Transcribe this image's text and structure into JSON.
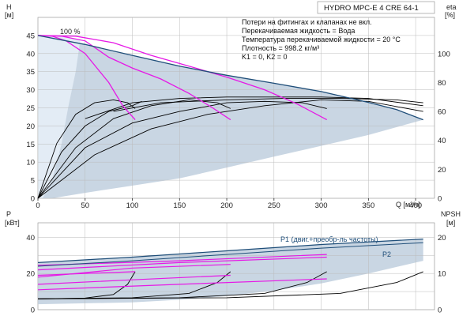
{
  "title": "HYDRO MPC-E 4 CRE 64-1",
  "notes": [
    "Потери на фитингах и клапанах не вкл.",
    "Перекачиваемая жидкость = Вода",
    "Температура перекачиваемой жидкости = 20 °C",
    "Плотность = 998.2 кг/м³",
    "K1 = 0, K2 = 0"
  ],
  "colors": {
    "envelope": "#c9d6e3",
    "envelope_light": "#e3ecf5",
    "max_curve": "#1f4e79",
    "speed_curves": "#e619e6",
    "efficiency": "#000000",
    "axis": "#222222",
    "frame": "#888888"
  },
  "chart_data": [
    {
      "type": "line",
      "name": "head-chart",
      "xlabel": "Q [м³/ч]",
      "ylabel": "H",
      "ylabel_unit": "[м]",
      "y2label": "eta",
      "y2label_unit": "[%]",
      "xlim": [
        0,
        420
      ],
      "ylim": [
        0,
        50
      ],
      "y2lim": [
        0,
        125
      ],
      "xticks": [
        0,
        50,
        100,
        150,
        200,
        250,
        300,
        350,
        400
      ],
      "yticks": [
        0,
        5,
        10,
        15,
        20,
        25,
        30,
        35,
        40,
        45
      ],
      "y2ticks": [
        0,
        20,
        40,
        60,
        80,
        100
      ],
      "speed_label": "100 %",
      "envelope": {
        "upper": [
          [
            0,
            45
          ],
          [
            50,
            42.5
          ],
          [
            100,
            39.5
          ],
          [
            150,
            36.5
          ],
          [
            200,
            34
          ],
          [
            250,
            31.8
          ],
          [
            300,
            29.5
          ],
          [
            350,
            26.5
          ],
          [
            380,
            24.5
          ],
          [
            408,
            21.7
          ]
        ],
        "lower": [
          [
            408,
            21.7
          ],
          [
            350,
            17.5
          ],
          [
            300,
            14.5
          ],
          [
            250,
            11.5
          ],
          [
            200,
            8.5
          ],
          [
            150,
            5.5
          ],
          [
            100,
            3.5
          ],
          [
            50,
            1.5
          ],
          [
            15,
            0
          ],
          [
            0,
            0
          ]
        ]
      },
      "envelope_light": [
        [
          0,
          45
        ],
        [
          20,
          44.8
        ],
        [
          45,
          44
        ],
        [
          40,
          35
        ],
        [
          32,
          25
        ],
        [
          25,
          15
        ],
        [
          15,
          5
        ],
        [
          5,
          0
        ],
        [
          0,
          0
        ]
      ],
      "max_curve": [
        [
          0,
          45
        ],
        [
          50,
          42.5
        ],
        [
          100,
          39.5
        ],
        [
          150,
          36.5
        ],
        [
          200,
          34
        ],
        [
          250,
          31.8
        ],
        [
          300,
          29.5
        ],
        [
          350,
          26.5
        ],
        [
          380,
          24.5
        ],
        [
          408,
          21.7
        ]
      ],
      "speed_curves": [
        [
          [
            0,
            45
          ],
          [
            15,
            44.8
          ],
          [
            30,
            43.5
          ],
          [
            50,
            40
          ],
          [
            75,
            32
          ],
          [
            90,
            25.5
          ],
          [
            103,
            21.7
          ]
        ],
        [
          [
            0,
            45
          ],
          [
            25,
            44.8
          ],
          [
            50,
            43.5
          ],
          [
            75,
            39
          ],
          [
            100,
            36
          ],
          [
            130,
            33
          ],
          [
            160,
            29
          ],
          [
            185,
            25
          ],
          [
            204,
            21.7
          ]
        ],
        [
          [
            0,
            45
          ],
          [
            40,
            44.8
          ],
          [
            80,
            43
          ],
          [
            120,
            39.5
          ],
          [
            160,
            36.5
          ],
          [
            200,
            33.5
          ],
          [
            240,
            30
          ],
          [
            275,
            26
          ],
          [
            306,
            21.7
          ]
        ]
      ],
      "efficiency_curves": [
        [
          [
            0,
            0
          ],
          [
            20,
            38
          ],
          [
            40,
            58
          ],
          [
            60,
            66
          ],
          [
            80,
            68
          ],
          [
            95,
            66
          ],
          [
            103,
            62
          ]
        ],
        [
          [
            0,
            0
          ],
          [
            25,
            32
          ],
          [
            50,
            50
          ],
          [
            75,
            60
          ],
          [
            100,
            64
          ],
          [
            110,
            67
          ]
        ],
        [
          [
            0,
            0
          ],
          [
            40,
            35
          ],
          [
            80,
            55
          ],
          [
            120,
            64
          ],
          [
            160,
            68
          ],
          [
            190,
            66
          ],
          [
            204,
            62
          ]
        ],
        [
          [
            0,
            0
          ],
          [
            50,
            35
          ],
          [
            100,
            52
          ],
          [
            150,
            60
          ],
          [
            200,
            66
          ],
          [
            240,
            67
          ],
          [
            280,
            66
          ],
          [
            306,
            62
          ]
        ],
        [
          [
            0,
            0
          ],
          [
            60,
            30
          ],
          [
            120,
            48
          ],
          [
            180,
            58
          ],
          [
            240,
            64
          ],
          [
            300,
            68
          ],
          [
            350,
            67
          ],
          [
            408,
            60
          ]
        ],
        [
          [
            50,
            55
          ],
          [
            100,
            66
          ],
          [
            150,
            69
          ],
          [
            200,
            70
          ],
          [
            250,
            70
          ],
          [
            300,
            70
          ],
          [
            350,
            69
          ],
          [
            408,
            64
          ]
        ],
        [
          [
            80,
            60
          ],
          [
            130,
            66
          ],
          [
            200,
            68
          ],
          [
            260,
            69
          ],
          [
            320,
            69
          ],
          [
            380,
            68
          ],
          [
            408,
            66
          ]
        ]
      ]
    },
    {
      "type": "line",
      "name": "power-chart",
      "ylabel": "P",
      "ylabel_unit": "[кВт]",
      "y2label": "NPSH",
      "y2label_unit": "[м]",
      "xlim": [
        0,
        420
      ],
      "ylim": [
        0,
        48
      ],
      "y2lim": [
        0,
        24
      ],
      "yticks": [
        0,
        20,
        40
      ],
      "y2ticks": [
        0,
        10,
        20
      ],
      "series_labels": {
        "p1": "P1 (двиг.+преобр-ль частоты)",
        "p2": "P2"
      },
      "envelope": {
        "upper": [
          [
            0,
            26
          ],
          [
            100,
            29
          ],
          [
            200,
            32.5
          ],
          [
            300,
            36
          ],
          [
            408,
            39
          ]
        ],
        "lower": [
          [
            408,
            27
          ],
          [
            350,
            20
          ],
          [
            300,
            14.5
          ],
          [
            250,
            10.5
          ],
          [
            200,
            7.5
          ],
          [
            150,
            5.5
          ],
          [
            100,
            4
          ],
          [
            0,
            3
          ]
        ]
      },
      "p1": [
        [
          0,
          26
        ],
        [
          100,
          29
        ],
        [
          200,
          32.5
        ],
        [
          300,
          36
        ],
        [
          408,
          39
        ]
      ],
      "p2": [
        [
          0,
          24
        ],
        [
          100,
          27
        ],
        [
          200,
          30.5
        ],
        [
          300,
          34
        ],
        [
          408,
          37
        ]
      ],
      "speed_power": [
        [
          [
            0,
            19
          ],
          [
            50,
            20
          ],
          [
            103,
            21
          ]
        ],
        [
          [
            0,
            14
          ],
          [
            100,
            16.5
          ],
          [
            204,
            19
          ]
        ],
        [
          [
            0,
            11
          ],
          [
            150,
            14
          ],
          [
            306,
            17
          ]
        ],
        [
          [
            0,
            18
          ],
          [
            100,
            23
          ],
          [
            204,
            25
          ]
        ],
        [
          [
            0,
            22
          ],
          [
            150,
            26
          ],
          [
            306,
            29
          ]
        ],
        [
          [
            0,
            24.5
          ],
          [
            150,
            27
          ],
          [
            306,
            30.5
          ]
        ]
      ],
      "npsh_curves": [
        [
          [
            0,
            3
          ],
          [
            50,
            3.2
          ],
          [
            80,
            4.2
          ],
          [
            95,
            7
          ],
          [
            103,
            10.5
          ]
        ],
        [
          [
            0,
            3
          ],
          [
            100,
            3.3
          ],
          [
            160,
            4.5
          ],
          [
            190,
            7.5
          ],
          [
            204,
            10.5
          ]
        ],
        [
          [
            0,
            3
          ],
          [
            150,
            3.3
          ],
          [
            240,
            4.5
          ],
          [
            285,
            7.5
          ],
          [
            306,
            10.5
          ]
        ],
        [
          [
            0,
            3
          ],
          [
            200,
            3.3
          ],
          [
            320,
            4.5
          ],
          [
            380,
            7.5
          ],
          [
            408,
            10.5
          ]
        ]
      ]
    }
  ]
}
